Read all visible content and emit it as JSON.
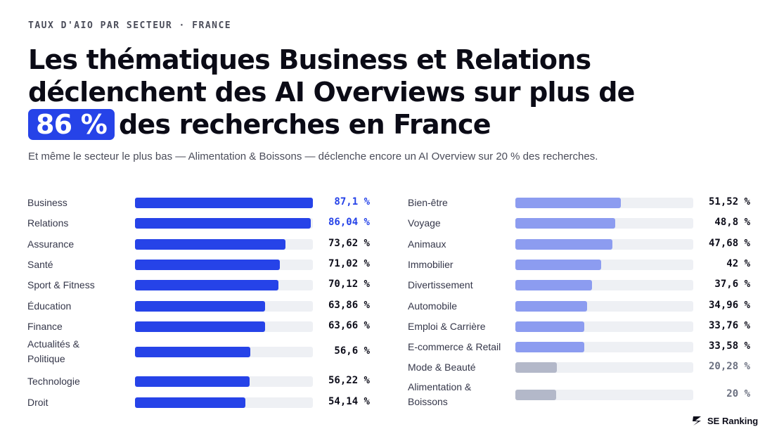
{
  "header": {
    "eyebrow": "TAUX D'AIO PAR SECTEUR · FRANCE",
    "title_line1": "Les thématiques Business et Relations",
    "title_line2": "déclenchent des AI Overviews sur plus de",
    "title_highlight": "86 %",
    "title_line3": "des recherches en France",
    "subtitle": "Et même le secteur le plus bas — Alimentation & Boissons — déclenche encore un AI Overview sur 20 % des recherches."
  },
  "colors": {
    "top_tier": "#2643e8",
    "mid_tier": "#8c9cf0",
    "low_tier": "#b3b8c9",
    "track": "#eef0f4",
    "highlight_text": "#2643e8"
  },
  "chart_data": [
    {
      "type": "bar",
      "orientation": "horizontal",
      "xlim": [
        0,
        100
      ],
      "categories": [
        "Business",
        "Relations",
        "Assurance",
        "Santé",
        "Sport & Fitness",
        "Éducation",
        "Finance",
        "Actualités & Politique",
        "Technologie",
        "Droit"
      ],
      "values": [
        87.1,
        86.04,
        73.62,
        71.02,
        70.12,
        63.86,
        63.66,
        56.6,
        56.22,
        54.14
      ],
      "value_labels": [
        "87,1 %",
        "86,04 %",
        "73,62 %",
        "71,02 %",
        "70,12 %",
        "63,86 %",
        "63,66 %",
        "56,6 %",
        "56,22 %",
        "54,14 %"
      ],
      "tiers": [
        "top",
        "top",
        "high",
        "high",
        "high",
        "high",
        "high",
        "high",
        "high",
        "high"
      ]
    },
    {
      "type": "bar",
      "orientation": "horizontal",
      "xlim": [
        0,
        100
      ],
      "categories": [
        "Bien-être",
        "Voyage",
        "Animaux",
        "Immobilier",
        "Divertissement",
        "Automobile",
        "Emploi & Carrière",
        "E-commerce & Retail",
        "Mode & Beauté",
        "Alimentation & Boissons"
      ],
      "values": [
        51.52,
        48.8,
        47.68,
        42,
        37.6,
        34.96,
        33.76,
        33.58,
        20.28,
        20
      ],
      "value_labels": [
        "51,52 %",
        "48,8 %",
        "47,68 %",
        "42 %",
        "37,6 %",
        "34,96 %",
        "33,76 %",
        "33,58 %",
        "20,28 %",
        "20 %"
      ],
      "tiers": [
        "mid",
        "mid",
        "mid",
        "mid",
        "mid",
        "mid",
        "mid",
        "mid",
        "low",
        "low"
      ]
    }
  ],
  "branding": {
    "name": "SE Ranking",
    "logo_icon": "se-ranking-logo-icon"
  }
}
